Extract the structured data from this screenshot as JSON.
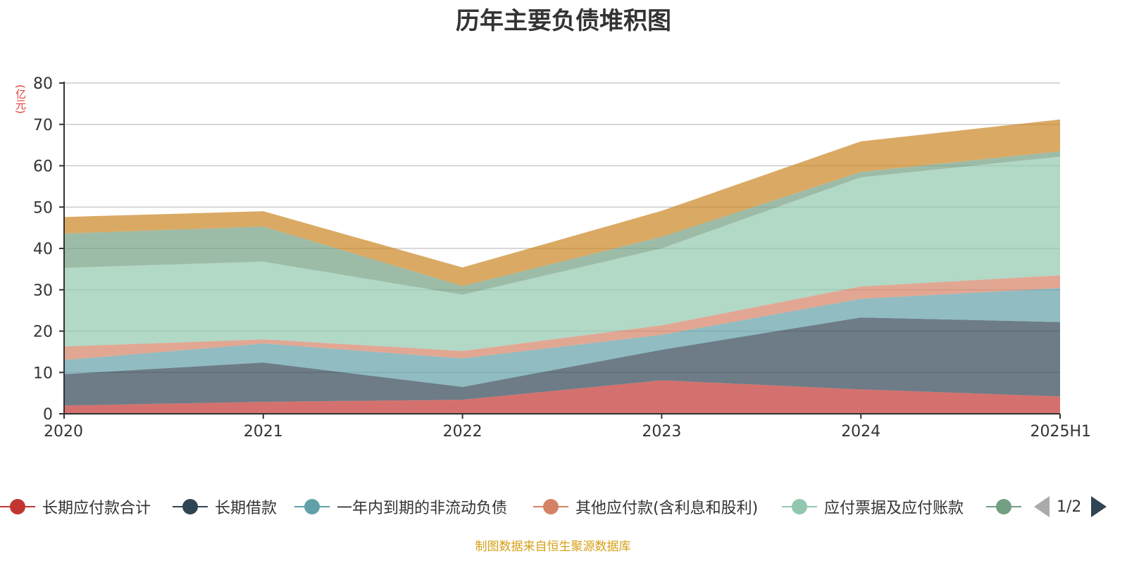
{
  "chart_data": {
    "type": "area",
    "title": "历年主要负债堆积图",
    "ylabel": "(亿元)",
    "xlabel": "",
    "stacked": true,
    "ylim": [
      0,
      80
    ],
    "yticks": [
      0,
      10,
      20,
      30,
      40,
      50,
      60,
      70,
      80
    ],
    "categories": [
      "2020",
      "2021",
      "2022",
      "2023",
      "2024",
      "2025H1"
    ],
    "grid": "horizontal",
    "series": [
      {
        "name": "长期应付款合计",
        "color": "#c23531",
        "values": [
          2.0,
          2.9,
          3.4,
          8.1,
          5.9,
          4.2
        ]
      },
      {
        "name": "长期借款",
        "color": "#2f4554",
        "values": [
          7.6,
          9.5,
          3.1,
          7.4,
          17.4,
          18.0
        ]
      },
      {
        "name": "一年内到期的非流动负债",
        "color": "#61a0a8",
        "values": [
          3.4,
          4.6,
          6.9,
          3.6,
          4.5,
          8.2
        ]
      },
      {
        "name": "其他应付款(含利息和股利)",
        "color": "#d48265",
        "values": [
          3.3,
          1.0,
          1.8,
          2.3,
          3.0,
          3.1
        ]
      },
      {
        "name": "应付票据及应付账款",
        "color": "#91c7ae",
        "values": [
          19.0,
          18.8,
          13.6,
          18.6,
          26.4,
          28.7
        ]
      },
      {
        "name": "",
        "color": "#749f83",
        "values": [
          8.3,
          8.5,
          2.1,
          2.8,
          1.3,
          1.3
        ]
      },
      {
        "name": "",
        "color": "#ca8622",
        "values": [
          4.0,
          3.7,
          4.5,
          6.3,
          7.4,
          7.7
        ]
      }
    ]
  },
  "legend": {
    "items": [
      {
        "label": "长期应付款合计",
        "color": "#c23531"
      },
      {
        "label": "长期借款",
        "color": "#2f4554"
      },
      {
        "label": "一年内到期的非流动负债",
        "color": "#61a0a8"
      },
      {
        "label": "其他应付款(含利息和股利)",
        "color": "#d48265"
      },
      {
        "label": "应付票据及应付账款",
        "color": "#91c7ae"
      },
      {
        "label": "",
        "color": "#749f83"
      }
    ],
    "page_indicator": "1/2",
    "prev_icon": "triangle-left-icon",
    "next_icon": "triangle-right-icon"
  },
  "footer": {
    "source_note": "制图数据来自恒生聚源数据库"
  }
}
